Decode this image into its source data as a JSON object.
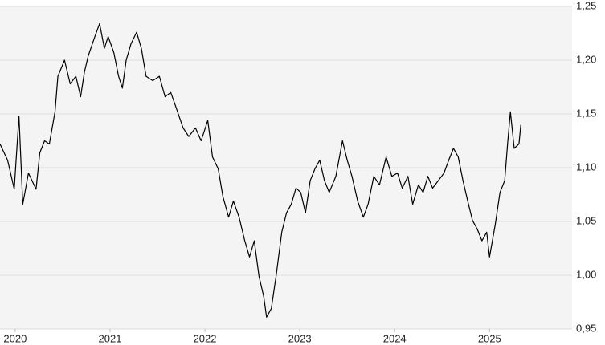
{
  "chart_data": {
    "type": "line",
    "x": [
      2019.84,
      2019.92,
      2019.99,
      2020.04,
      2020.08,
      2020.14,
      2020.22,
      2020.26,
      2020.31,
      2020.36,
      2020.42,
      2020.45,
      2020.52,
      2020.58,
      2020.64,
      2020.69,
      2020.73,
      2020.77,
      2020.84,
      2020.89,
      2020.94,
      2020.98,
      2021.04,
      2021.09,
      2021.13,
      2021.17,
      2021.22,
      2021.28,
      2021.33,
      2021.38,
      2021.45,
      2021.52,
      2021.58,
      2021.64,
      2021.7,
      2021.77,
      2021.83,
      2021.9,
      2021.96,
      2022.03,
      2022.08,
      2022.14,
      2022.19,
      2022.25,
      2022.3,
      2022.36,
      2022.42,
      2022.47,
      2022.52,
      2022.57,
      2022.62,
      2022.65,
      2022.7,
      2022.75,
      2022.81,
      2022.86,
      2022.91,
      2022.96,
      2023.01,
      2023.06,
      2023.11,
      2023.16,
      2023.21,
      2023.26,
      2023.31,
      2023.38,
      2023.45,
      2023.5,
      2023.55,
      2023.61,
      2023.67,
      2023.72,
      2023.78,
      2023.84,
      2023.91,
      2023.97,
      2024.03,
      2024.08,
      2024.14,
      2024.19,
      2024.25,
      2024.3,
      2024.35,
      2024.4,
      2024.46,
      2024.52,
      2024.57,
      2024.62,
      2024.67,
      2024.72,
      2024.77,
      2024.82,
      2024.87,
      2024.92,
      2024.97,
      2025.0,
      2025.06,
      2025.11,
      2025.16,
      2025.19,
      2025.22,
      2025.26,
      2025.31,
      2025.33
    ],
    "series": [
      {
        "color": "#000000",
        "values": [
          1.122,
          1.107,
          1.08,
          1.148,
          1.066,
          1.095,
          1.08,
          1.114,
          1.125,
          1.122,
          1.152,
          1.185,
          1.2,
          1.178,
          1.185,
          1.166,
          1.189,
          1.204,
          1.222,
          1.234,
          1.211,
          1.222,
          1.207,
          1.185,
          1.174,
          1.2,
          1.215,
          1.226,
          1.211,
          1.185,
          1.181,
          1.185,
          1.166,
          1.17,
          1.155,
          1.137,
          1.129,
          1.137,
          1.125,
          1.144,
          1.11,
          1.099,
          1.073,
          1.054,
          1.069,
          1.054,
          1.032,
          1.017,
          1.032,
          0.999,
          0.98,
          0.961,
          0.969,
          0.999,
          1.04,
          1.058,
          1.066,
          1.081,
          1.077,
          1.058,
          1.088,
          1.099,
          1.107,
          1.088,
          1.077,
          1.092,
          1.125,
          1.107,
          1.092,
          1.069,
          1.054,
          1.066,
          1.092,
          1.084,
          1.11,
          1.092,
          1.095,
          1.081,
          1.092,
          1.066,
          1.084,
          1.077,
          1.092,
          1.081,
          1.088,
          1.095,
          1.107,
          1.118,
          1.11,
          1.088,
          1.069,
          1.051,
          1.043,
          1.032,
          1.04,
          1.017,
          1.047,
          1.077,
          1.088,
          1.122,
          1.152,
          1.118,
          1.122,
          1.14
        ]
      }
    ],
    "xlim": [
      2019.84,
      2025.87
    ],
    "xticks": [
      2020,
      2021,
      2022,
      2023,
      2024,
      2025
    ],
    "ylim": [
      0.95,
      1.25
    ],
    "yticks": [
      {
        "value": 0.95,
        "label": "0,95"
      },
      {
        "value": 1.0,
        "label": "1,00"
      },
      {
        "value": 1.05,
        "label": "1,05"
      },
      {
        "value": 1.1,
        "label": "1,10"
      },
      {
        "value": 1.15,
        "label": "1,15"
      },
      {
        "value": 1.2,
        "label": "1,20"
      },
      {
        "value": 1.25,
        "label": "1,25"
      }
    ],
    "grid": true
  }
}
